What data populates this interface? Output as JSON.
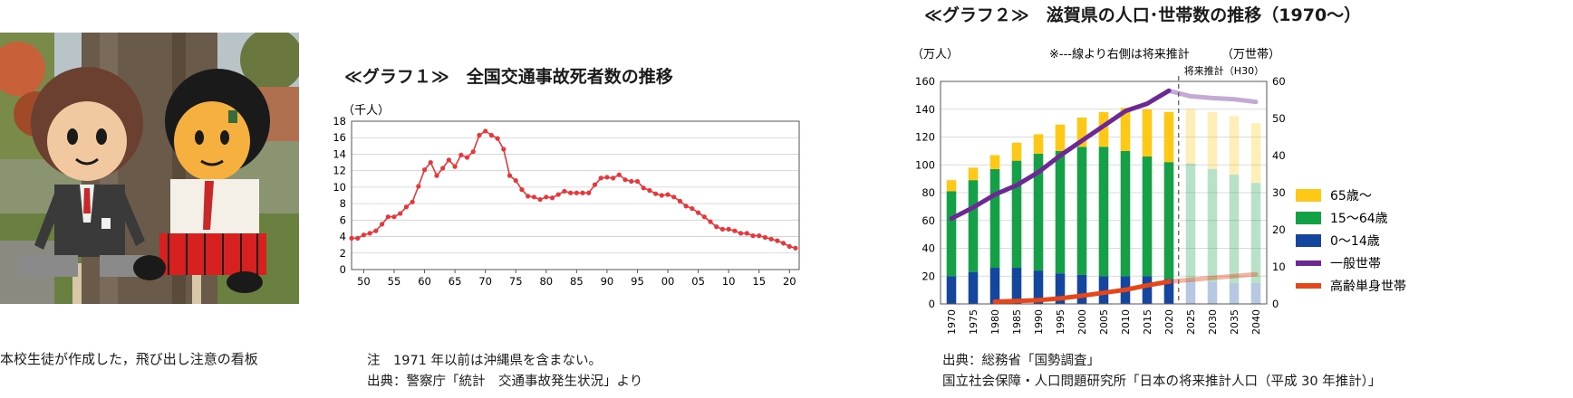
{
  "photo": {
    "caption": "本校生徒が作成した，飛び出し注意の看板"
  },
  "chart1": {
    "title": "≪グラフ１≫　全国交通事故死者数の推移",
    "note_line1": "注　1971 年以前は沖縄県を含まない。",
    "note_line2": "出典：警察庁「統計　交通事故発生状況」より"
  },
  "chart2": {
    "title": "≪グラフ２≫　滋賀県の人口･世帯数の推移（1970～）",
    "source_line1": "出典：総務省「国勢調査」",
    "source_line2": "国立社会保障・人口問題研究所「日本の将来推計人口（平成 30 年推計）」"
  },
  "chart_data": [
    {
      "type": "line",
      "ylabel": "（千人）",
      "xlabel": "",
      "ylim": [
        0,
        18
      ],
      "yticks": [
        0,
        2,
        4,
        6,
        8,
        10,
        12,
        14,
        16,
        18
      ],
      "xticks": [
        1950,
        1955,
        1960,
        1965,
        1970,
        1975,
        1980,
        1985,
        1990,
        1995,
        2000,
        2005,
        2010,
        2015,
        2020
      ],
      "xtick_labels": [
        "50",
        "55",
        "60",
        "65",
        "70",
        "75",
        "80",
        "85",
        "90",
        "95",
        "00",
        "05",
        "10",
        "15",
        "20"
      ],
      "color": "#e8363a",
      "x": [
        1948,
        1949,
        1950,
        1951,
        1952,
        1953,
        1954,
        1955,
        1956,
        1957,
        1958,
        1959,
        1960,
        1961,
        1962,
        1963,
        1964,
        1965,
        1966,
        1967,
        1968,
        1969,
        1970,
        1971,
        1972,
        1973,
        1974,
        1975,
        1976,
        1977,
        1978,
        1979,
        1980,
        1981,
        1982,
        1983,
        1984,
        1985,
        1986,
        1987,
        1988,
        1989,
        1990,
        1991,
        1992,
        1993,
        1994,
        1995,
        1996,
        1997,
        1998,
        1999,
        2000,
        2001,
        2002,
        2003,
        2004,
        2005,
        2006,
        2007,
        2008,
        2009,
        2010,
        2011,
        2012,
        2013,
        2014,
        2015,
        2016,
        2017,
        2018,
        2019,
        2020,
        2021
      ],
      "y": [
        3.8,
        3.8,
        4.2,
        4.4,
        4.7,
        5.5,
        6.4,
        6.4,
        6.8,
        7.6,
        8.2,
        10.1,
        12.1,
        13.0,
        11.4,
        12.3,
        13.3,
        12.5,
        13.9,
        13.6,
        14.3,
        16.3,
        16.8,
        16.3,
        15.9,
        14.6,
        11.4,
        10.8,
        9.7,
        8.9,
        8.8,
        8.5,
        8.8,
        8.7,
        9.1,
        9.5,
        9.3,
        9.3,
        9.3,
        9.3,
        10.3,
        11.1,
        11.2,
        11.1,
        11.5,
        10.9,
        10.7,
        10.7,
        9.9,
        9.6,
        9.2,
        9.0,
        9.1,
        8.8,
        8.3,
        7.7,
        7.4,
        6.9,
        6.4,
        5.8,
        5.2,
        4.9,
        4.9,
        4.7,
        4.4,
        4.4,
        4.1,
        4.1,
        3.9,
        3.7,
        3.5,
        3.2,
        2.8,
        2.6
      ]
    },
    {
      "type": "bar",
      "left_axis_label": "（万人）",
      "right_axis_label": "（万世帯）",
      "note": "※---線より右側は将来推計",
      "projection_label": "将来推計（H30）",
      "ylim_left": [
        0,
        160
      ],
      "yticks_left": [
        0,
        20,
        40,
        60,
        80,
        100,
        120,
        140,
        160
      ],
      "ylim_right": [
        0,
        60
      ],
      "yticks_right": [
        0,
        10,
        20,
        30,
        40,
        50,
        60
      ],
      "categories": [
        "1970",
        "1975",
        "1980",
        "1985",
        "1990",
        "1995",
        "2000",
        "2005",
        "2010",
        "2015",
        "2020",
        "2025",
        "2030",
        "2035",
        "2040"
      ],
      "projection_start_index": 11,
      "stacked_series": [
        {
          "name": "0～14歳",
          "color": "#1446a0",
          "values": [
            20,
            23,
            26,
            26,
            24,
            22,
            21,
            20,
            20,
            20,
            18,
            17,
            16,
            15,
            15
          ]
        },
        {
          "name": "15～64歳",
          "color": "#14a046",
          "values": [
            61,
            66,
            71,
            77,
            84,
            88,
            92,
            93,
            90,
            86,
            84,
            84,
            81,
            78,
            72
          ]
        },
        {
          "name": "65歳～",
          "color": "#ffc814",
          "values": [
            8,
            9,
            10,
            13,
            14,
            19,
            21,
            25,
            31,
            34,
            36,
            39,
            41,
            42,
            43
          ]
        }
      ],
      "line_series": [
        {
          "name": "一般世帯",
          "color": "#6e2896",
          "axis": "right",
          "values": [
            23,
            26,
            29.5,
            32,
            35.5,
            40,
            44,
            48,
            52,
            54,
            57.5,
            56,
            55.5,
            55.2,
            54.5
          ]
        },
        {
          "name": "高齢単身世帯",
          "color": "#e84618",
          "axis": "right",
          "values": [
            null,
            null,
            0.6,
            0.8,
            1,
            1.5,
            2.2,
            3,
            3.8,
            5,
            6,
            6.5,
            7,
            7.5,
            8
          ]
        }
      ]
    }
  ]
}
